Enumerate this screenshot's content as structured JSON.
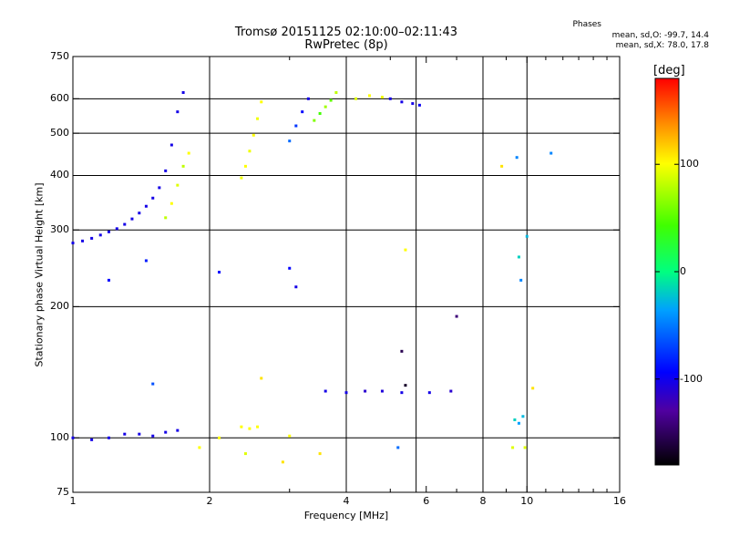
{
  "chart_data": {
    "type": "scatter",
    "title": "Tromsø 20151125 02:10:00–02:11:43",
    "subtitle": "RwPretec (8p)",
    "xlabel": "Frequency [MHz]",
    "ylabel": "Stationary phase Virtual Height [km]",
    "x_scale": "log",
    "y_scale": "log",
    "xlim": [
      1,
      16
    ],
    "ylim": [
      75,
      750
    ],
    "x_ticks": [
      1,
      2,
      4,
      6,
      8,
      10,
      16
    ],
    "x_tick_labels": [
      "1",
      "2",
      "4",
      "6",
      "8",
      "10",
      "16"
    ],
    "x_gridlines": [
      2,
      4,
      5.7,
      8,
      10
    ],
    "y_ticks": [
      75,
      100,
      200,
      300,
      400,
      500,
      600,
      750
    ],
    "y_tick_labels": [
      "75",
      "100",
      "200",
      "300",
      "400",
      "500",
      "600",
      "750"
    ],
    "y_gridlines": [
      100,
      200,
      300,
      400,
      500,
      600
    ],
    "grid": true,
    "stats_box": {
      "heading": "Phases",
      "line_o": "mean, sd,O: -99.7, 14.4",
      "line_x": "mean, sd,X:  78.0, 17.8"
    },
    "colorbar": {
      "label": "[deg]",
      "range": [
        -180,
        180
      ],
      "ticks": [
        -100,
        0,
        100
      ],
      "tick_labels": [
        "-100",
        "0",
        "100"
      ]
    },
    "series": [
      {
        "points": [
          [
            1.0,
            280,
            -110
          ],
          [
            1.05,
            283,
            -110
          ],
          [
            1.1,
            287,
            -110
          ],
          [
            1.15,
            292,
            -110
          ],
          [
            1.2,
            297,
            -110
          ],
          [
            1.25,
            302,
            -110
          ],
          [
            1.3,
            309,
            -110
          ],
          [
            1.35,
            318,
            -110
          ],
          [
            1.4,
            328,
            -110
          ],
          [
            1.45,
            340,
            -110
          ],
          [
            1.5,
            355,
            -110
          ],
          [
            1.55,
            375,
            -110
          ],
          [
            1.6,
            410,
            -110
          ],
          [
            1.65,
            470,
            -110
          ],
          [
            1.7,
            560,
            -110
          ],
          [
            1.75,
            620,
            -110
          ]
        ]
      },
      {
        "points": [
          [
            1.6,
            320,
            80
          ],
          [
            1.65,
            345,
            100
          ],
          [
            1.7,
            380,
            90
          ],
          [
            1.75,
            420,
            80
          ],
          [
            1.8,
            450,
            100
          ]
        ]
      },
      {
        "points": [
          [
            2.35,
            395,
            95
          ],
          [
            2.4,
            420,
            100
          ],
          [
            2.45,
            455,
            95
          ],
          [
            2.5,
            495,
            100
          ],
          [
            2.55,
            540,
            95
          ],
          [
            2.6,
            590,
            100
          ]
        ]
      },
      {
        "points": [
          [
            3.0,
            480,
            -60
          ],
          [
            3.1,
            520,
            -80
          ],
          [
            3.2,
            560,
            -100
          ],
          [
            3.3,
            600,
            -110
          ]
        ]
      },
      {
        "points": [
          [
            3.4,
            535,
            60
          ],
          [
            3.5,
            555,
            40
          ],
          [
            3.6,
            575,
            70
          ],
          [
            3.7,
            595,
            50
          ],
          [
            3.8,
            620,
            80
          ]
        ]
      },
      {
        "points": [
          [
            4.2,
            600,
            90
          ],
          [
            4.5,
            610,
            100
          ],
          [
            4.8,
            605,
            95
          ],
          [
            5.0,
            600,
            -110
          ],
          [
            5.3,
            590,
            -110
          ],
          [
            5.6,
            585,
            -110
          ],
          [
            5.8,
            580,
            -105
          ]
        ]
      },
      {
        "points": [
          [
            1.0,
            100,
            -110
          ],
          [
            1.1,
            99,
            -110
          ],
          [
            1.2,
            100,
            -110
          ],
          [
            1.3,
            102,
            -110
          ],
          [
            1.4,
            102,
            -110
          ],
          [
            1.5,
            101,
            -110
          ],
          [
            1.6,
            103,
            -110
          ],
          [
            1.7,
            104,
            -110
          ]
        ]
      },
      {
        "points": [
          [
            2.35,
            106,
            100
          ],
          [
            2.45,
            105,
            100
          ],
          [
            2.55,
            106,
            100
          ]
        ]
      },
      {
        "points": [
          [
            3.6,
            128,
            -110
          ],
          [
            4.0,
            127,
            -110
          ],
          [
            4.4,
            128,
            -120
          ],
          [
            4.8,
            128,
            -115
          ],
          [
            5.3,
            127,
            -110
          ],
          [
            6.1,
            127,
            -110
          ],
          [
            6.8,
            128,
            -120
          ]
        ]
      },
      {
        "points": [
          [
            9.4,
            110,
            -20
          ],
          [
            9.6,
            108,
            -40
          ],
          [
            9.8,
            112,
            -30
          ],
          [
            9.6,
            260,
            -20
          ],
          [
            9.7,
            230,
            -50
          ],
          [
            10.0,
            290,
            -30
          ],
          [
            9.5,
            440,
            -50
          ]
        ]
      },
      {
        "points": [
          [
            1.2,
            230,
            -100
          ],
          [
            1.45,
            255,
            -90
          ],
          [
            2.1,
            240,
            -100
          ],
          [
            3.0,
            245,
            -100
          ],
          [
            3.1,
            222,
            -110
          ],
          [
            7.0,
            190,
            -150
          ],
          [
            5.3,
            158,
            -160
          ],
          [
            5.4,
            132,
            -170
          ],
          [
            1.5,
            133,
            -70
          ],
          [
            2.6,
            137,
            110
          ],
          [
            2.4,
            92,
            90
          ],
          [
            3.0,
            101,
            100
          ],
          [
            2.1,
            100,
            100
          ],
          [
            1.9,
            95,
            100
          ],
          [
            5.2,
            95,
            -60
          ],
          [
            2.9,
            88,
            110
          ],
          [
            3.5,
            92,
            110
          ],
          [
            9.3,
            95,
            90
          ],
          [
            9.9,
            95,
            90
          ],
          [
            5.4,
            270,
            100
          ],
          [
            10.3,
            130,
            110
          ],
          [
            8.8,
            420,
            110
          ],
          [
            11.3,
            450,
            -50
          ]
        ]
      }
    ]
  }
}
